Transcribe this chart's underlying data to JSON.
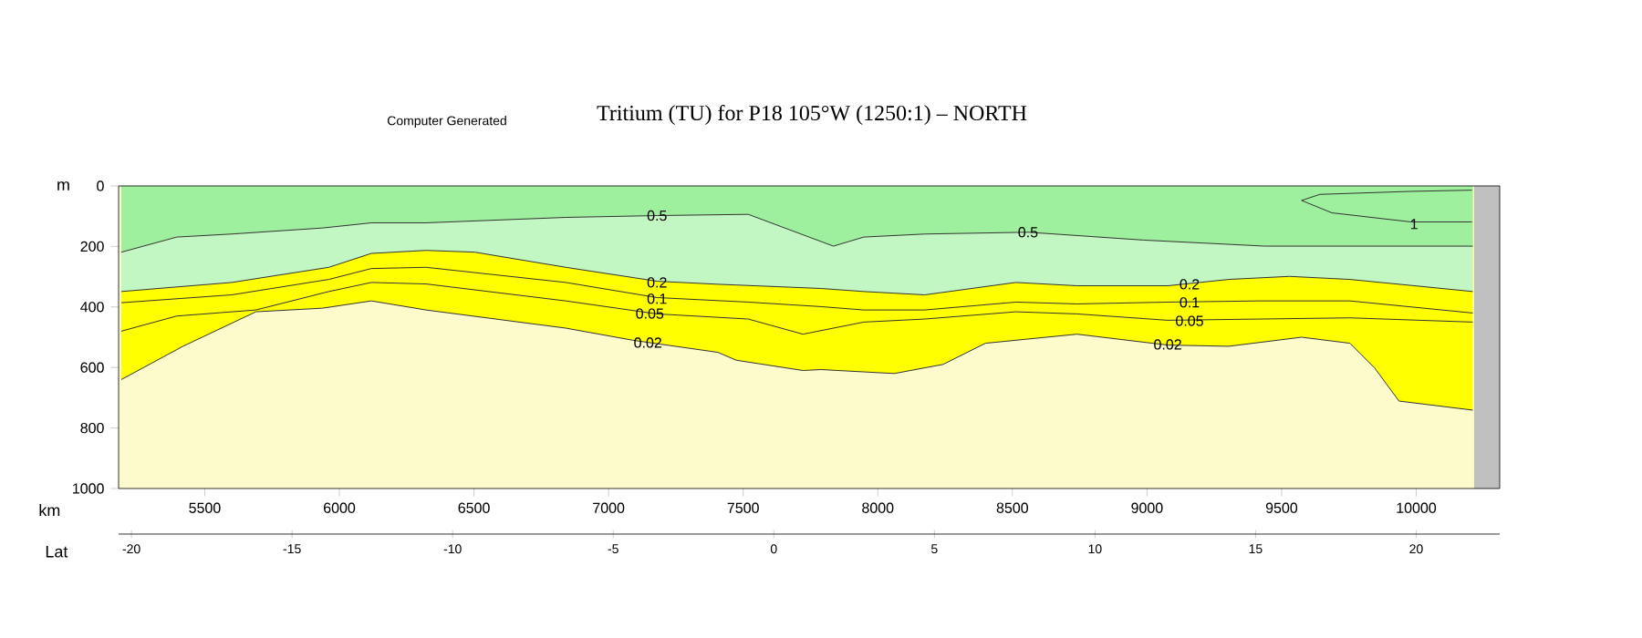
{
  "chart_data": {
    "type": "line",
    "title": "Tritium (TU) for P18 105°W (1250:1) – NORTH",
    "xlabel": "km",
    "ylabel": "m",
    "x2label": "Lat",
    "xlim": [
      5180,
      10310
    ],
    "xticks": [
      5500,
      6000,
      6500,
      7000,
      7500,
      8000,
      8500,
      9000,
      9500,
      10000
    ],
    "x2lim": [
      -20.4,
      22.6
    ],
    "x2ticks": [
      -20,
      -15,
      -10,
      -5,
      0,
      5,
      10,
      15,
      20
    ],
    "ylim": [
      1000,
      0
    ],
    "yticks": [
      0,
      200,
      400,
      600,
      800,
      1000
    ],
    "bands": [
      {
        "axis": "y",
        "from": 0,
        "to": 1000,
        "color": "#fdfbcc"
      },
      {
        "axis": "x",
        "from": 10215,
        "to": 10310,
        "color": "#c0c0c0"
      }
    ],
    "series": [
      {
        "type": "area",
        "color": "#9eef9e",
        "x": [
          5190,
          5396,
          5600,
          5938,
          6119,
          6322,
          6841,
          7180,
          7519,
          7835,
          7948,
          8174,
          8558,
          8987,
          9438,
          9754,
          10210
        ],
        "values": [
          219,
          169,
          159,
          139,
          122,
          122,
          104,
          98,
          94,
          199,
          169,
          159,
          153,
          179,
          199,
          199,
          199
        ]
      },
      {
        "type": "area",
        "color": "#c2f6c2",
        "x": [
          5190,
          5600,
          5961,
          6119,
          6322,
          6503,
          6841,
          7180,
          7406,
          7790,
          7948,
          8174,
          8513,
          8740,
          9077,
          9303,
          9529,
          9754,
          10210
        ],
        "values": [
          349,
          319,
          269,
          223,
          213,
          219,
          269,
          315,
          325,
          339,
          349,
          360,
          319,
          330,
          330,
          309,
          299,
          309,
          349
        ]
      },
      {
        "color": "#333333",
        "x": [
          5190,
          5600,
          5961,
          6119,
          6322,
          6841,
          7180,
          7519,
          7790,
          7948,
          8174,
          8513,
          8740,
          9077,
          9416,
          9754,
          10210
        ],
        "values": [
          386,
          360,
          309,
          273,
          269,
          319,
          369,
          384,
          399,
          410,
          410,
          384,
          390,
          384,
          380,
          380,
          420
        ]
      },
      {
        "color": "#333333",
        "x": [
          5190,
          5396,
          5690,
          5961,
          6119,
          6322,
          6841,
          7180,
          7519,
          7722,
          7948,
          8174,
          8513,
          8740,
          9077,
          9416,
          9754,
          10210
        ],
        "values": [
          480,
          430,
          410,
          349,
          319,
          324,
          380,
          423,
          440,
          490,
          450,
          440,
          416,
          423,
          444,
          440,
          436,
          450
        ]
      },
      {
        "type": "area",
        "color": "#ffff00",
        "x": [
          5190,
          5419,
          5690,
          5938,
          6119,
          6322,
          6841,
          7090,
          7406,
          7474,
          7722,
          7790,
          8061,
          8242,
          8400,
          8740,
          9077,
          9303,
          9574,
          9754,
          9845,
          9936,
          10210
        ],
        "values": [
          640,
          530,
          416,
          404,
          380,
          410,
          470,
          510,
          550,
          576,
          610,
          607,
          620,
          590,
          520,
          490,
          526,
          530,
          500,
          520,
          601,
          711,
          741
        ]
      },
      {
        "color": "#333333",
        "x": [
          9574,
          9642,
          9981,
          10207
        ],
        "values": [
          48,
          28,
          18,
          14
        ]
      },
      {
        "color": "#333333",
        "x": [
          9574,
          9687,
          9981,
          10207
        ],
        "values": [
          48,
          89,
          119,
          119
        ]
      }
    ],
    "annotations": [
      "Computer Generated",
      {
        "text": "0.5",
        "x": 7180,
        "y": 98
      },
      {
        "text": "0.5",
        "x": 8558,
        "y": 153
      },
      {
        "text": "0.2",
        "x": 7180,
        "y": 319
      },
      {
        "text": "0.2",
        "x": 9158,
        "y": 325
      },
      {
        "text": "0.1",
        "x": 7180,
        "y": 373
      },
      {
        "text": "0.1",
        "x": 9158,
        "y": 385
      },
      {
        "text": "0.05",
        "x": 7153,
        "y": 422
      },
      {
        "text": "0.05",
        "x": 9158,
        "y": 446
      },
      {
        "text": "0.02",
        "x": 7146,
        "y": 518
      },
      {
        "text": "0.02",
        "x": 9077,
        "y": 524
      },
      {
        "text": "1",
        "x": 9992,
        "y": 126
      }
    ]
  }
}
